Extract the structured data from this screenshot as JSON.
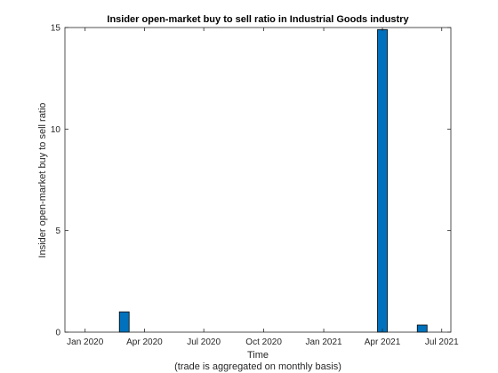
{
  "chart_data": {
    "type": "bar",
    "title": "Insider open-market buy to sell ratio in Industrial Goods industry",
    "xlabel": "Time",
    "xlabel_sub": "(trade is aggregated on monthly basis)",
    "ylabel": "Insider open-market buy to sell ratio",
    "ylim": [
      0,
      15
    ],
    "yticks": [
      0,
      5,
      10,
      15
    ],
    "x_range": [
      "2019-12-01",
      "2021-07-15"
    ],
    "xticks": [
      {
        "date": "2020-01-01",
        "label": "Jan 2020"
      },
      {
        "date": "2020-04-01",
        "label": "Apr 2020"
      },
      {
        "date": "2020-07-01",
        "label": "Jul 2020"
      },
      {
        "date": "2020-10-01",
        "label": "Oct 2020"
      },
      {
        "date": "2021-01-01",
        "label": "Jan 2021"
      },
      {
        "date": "2021-04-01",
        "label": "Apr 2021"
      },
      {
        "date": "2021-07-01",
        "label": "Jul 2021"
      }
    ],
    "series": [
      {
        "points": [
          {
            "date": "2020-03-01",
            "value": 1.0
          },
          {
            "date": "2021-04-01",
            "value": 14.9
          },
          {
            "date": "2021-06-01",
            "value": 0.35
          }
        ]
      }
    ],
    "bar_color": "#0072BD",
    "grid": false,
    "box": true
  }
}
